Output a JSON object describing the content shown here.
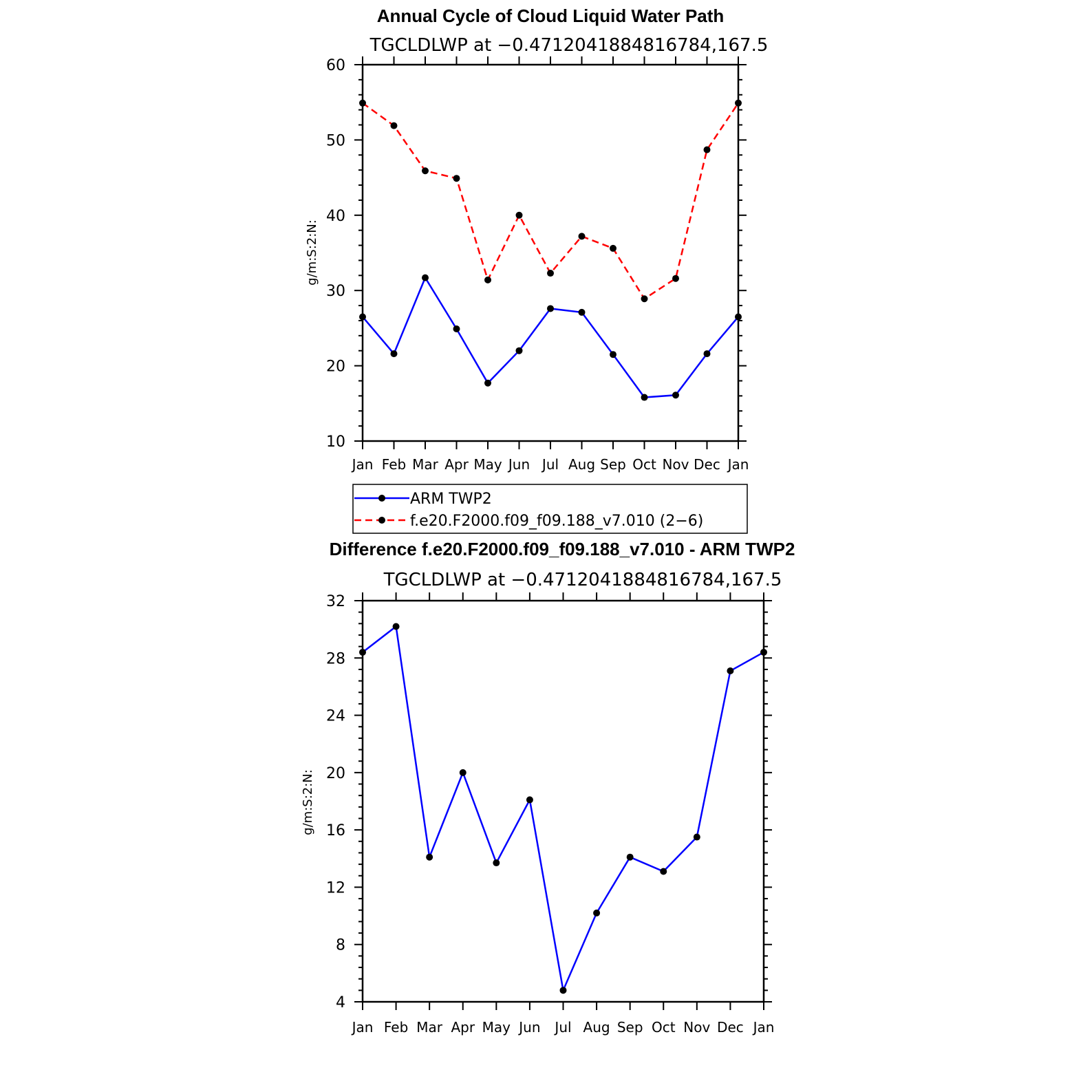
{
  "chart_data": [
    {
      "type": "line",
      "title": "Annual Cycle of Cloud Liquid Water Path",
      "subtitle": "TGCLDLWP at −0.4712041884816784,167.5",
      "ylabel": "g/m:S:2:N:",
      "xlabel": "",
      "categories": [
        "Jan",
        "Feb",
        "Mar",
        "Apr",
        "May",
        "Jun",
        "Jul",
        "Aug",
        "Sep",
        "Oct",
        "Nov",
        "Dec",
        "Jan"
      ],
      "ylim": [
        10,
        60
      ],
      "yticks": [
        10,
        20,
        30,
        40,
        50,
        60
      ],
      "series": [
        {
          "name": "ARM TWP2",
          "color": "#0000ff",
          "dash": "solid",
          "values": [
            26.5,
            21.6,
            31.7,
            24.9,
            17.7,
            22.0,
            27.6,
            27.1,
            21.5,
            15.8,
            16.1,
            21.6,
            26.5
          ]
        },
        {
          "name": "f.e20.F2000.f09_f09.188_v7.010 (2−6)",
          "color": "#ff0000",
          "dash": "dashed",
          "values": [
            54.9,
            51.9,
            45.9,
            44.9,
            31.4,
            40.0,
            32.3,
            37.2,
            35.6,
            28.9,
            31.6,
            48.7,
            54.9
          ]
        }
      ],
      "legend": "below"
    },
    {
      "type": "line",
      "title": "Difference f.e20.F2000.f09_f09.188_v7.010 - ARM TWP2",
      "subtitle": "TGCLDLWP at −0.4712041884816784,167.5",
      "ylabel": "g/m:S:2:N:",
      "xlabel": "",
      "categories": [
        "Jan",
        "Feb",
        "Mar",
        "Apr",
        "May",
        "Jun",
        "Jul",
        "Aug",
        "Sep",
        "Oct",
        "Nov",
        "Dec",
        "Jan"
      ],
      "ylim": [
        4,
        32
      ],
      "yticks": [
        4,
        8,
        12,
        16,
        20,
        24,
        28,
        32
      ],
      "series": [
        {
          "color": "#0000ff",
          "dash": "solid",
          "values": [
            28.4,
            30.2,
            14.1,
            20.0,
            13.7,
            18.1,
            4.8,
            10.2,
            14.1,
            13.1,
            15.5,
            27.1,
            28.4
          ]
        }
      ]
    }
  ]
}
